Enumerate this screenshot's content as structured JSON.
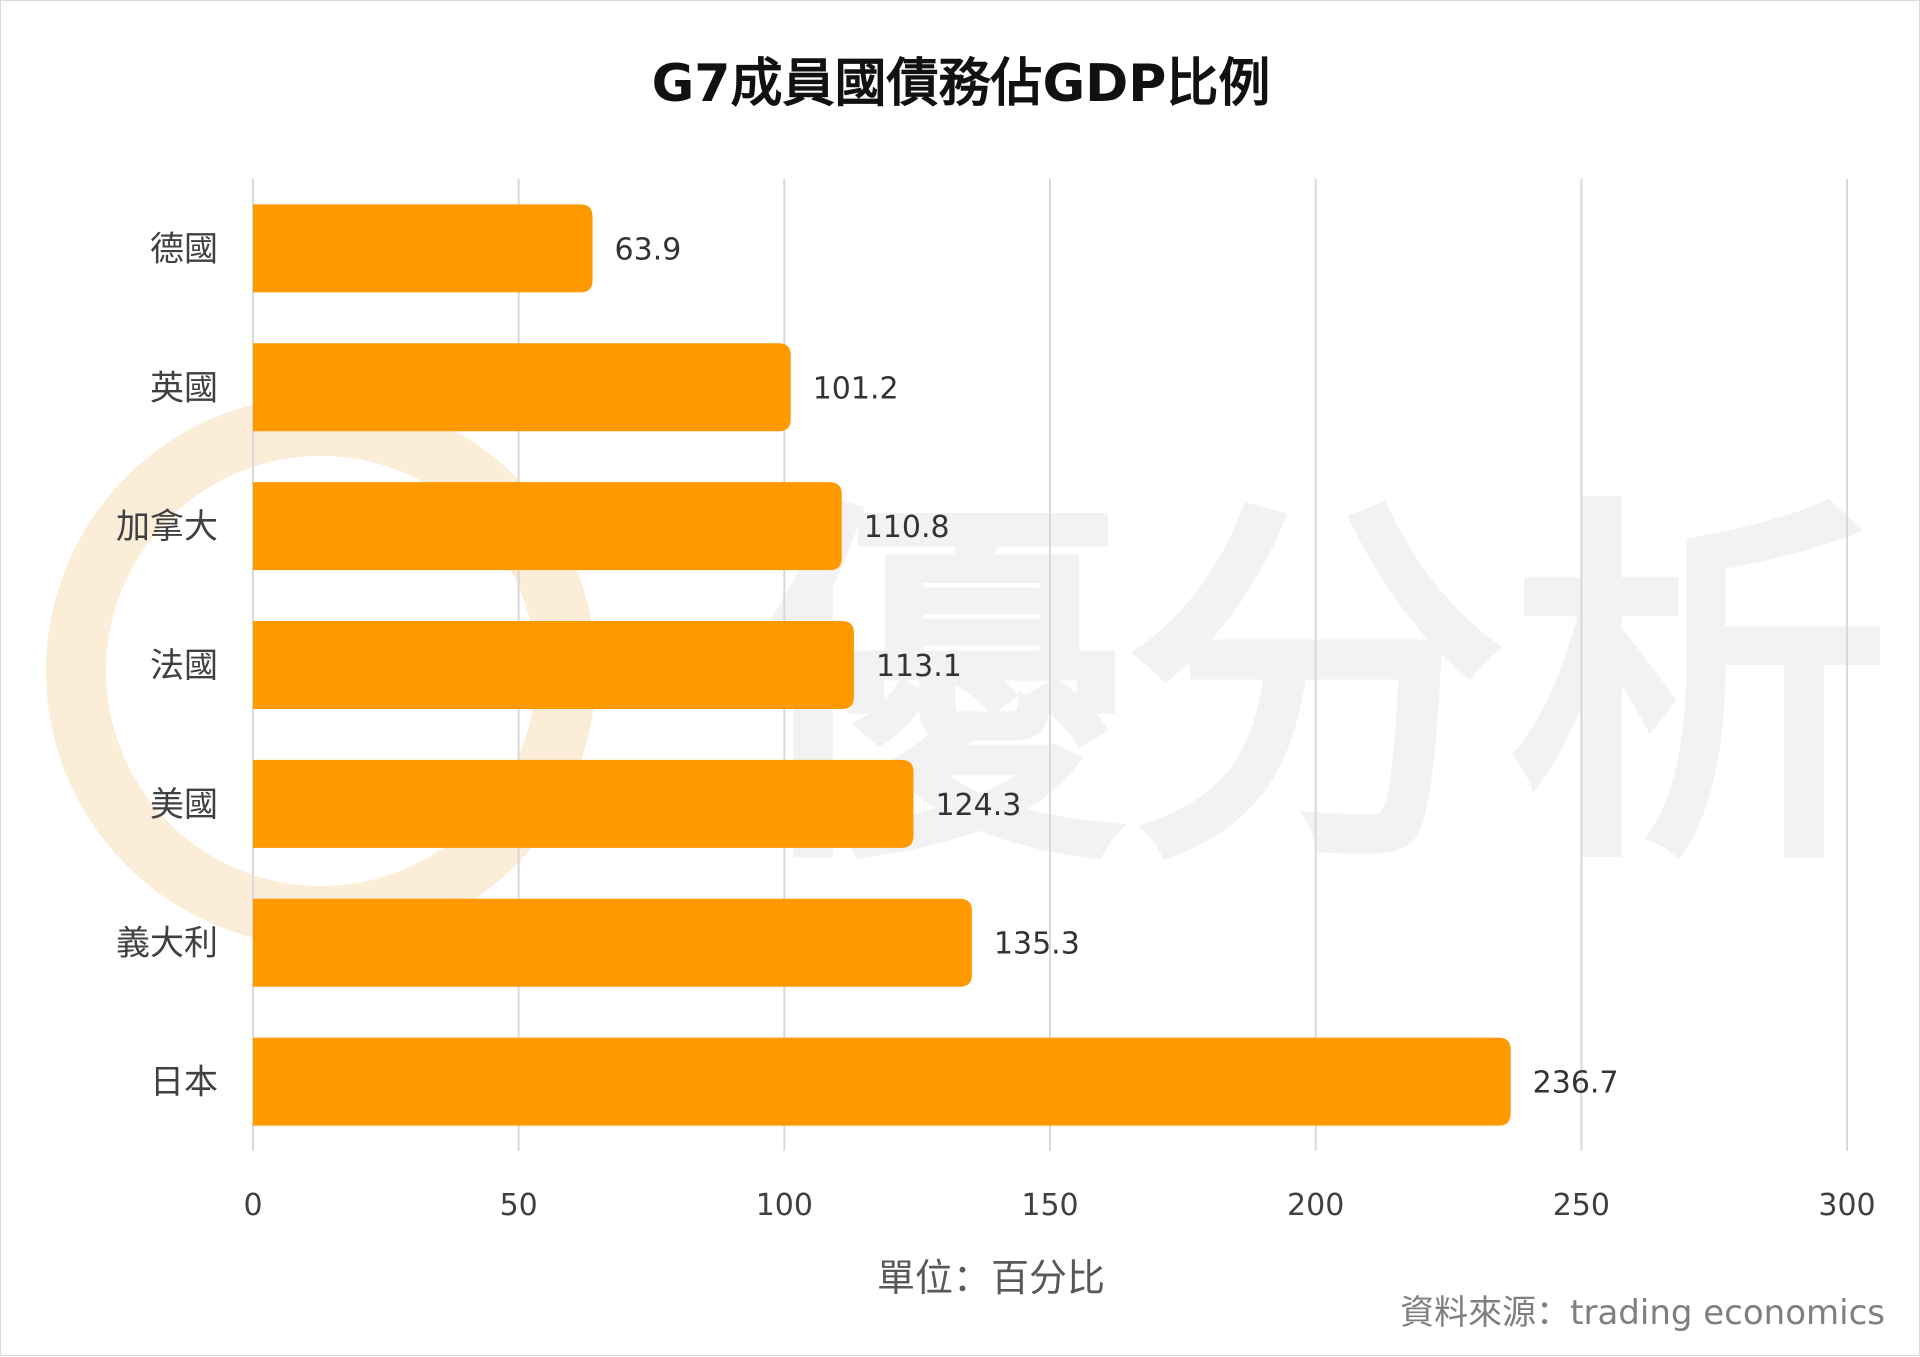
{
  "watermark": {
    "text": "優分析"
  },
  "chart_data": {
    "type": "bar",
    "orientation": "horizontal",
    "title": "G7成員國債務佔GDP比例",
    "categories": [
      "德國",
      "英國",
      "加拿大",
      "法國",
      "美國",
      "義大利",
      "日本"
    ],
    "values": [
      63.9,
      101.2,
      110.8,
      113.1,
      124.3,
      135.3,
      236.7
    ],
    "data_labels": [
      "63.9",
      "101.2",
      "110.8",
      "113.1",
      "124.3",
      "135.3",
      "236.7"
    ],
    "xlabel": "單位：百分比",
    "ylabel": "",
    "xlim": [
      0,
      300
    ],
    "xticks": [
      0,
      50,
      100,
      150,
      200,
      250,
      300
    ],
    "xtick_labels": [
      "0",
      "50",
      "100",
      "150",
      "200",
      "250",
      "300"
    ],
    "grid": true,
    "bar_color": "#FF9900",
    "source": "資料來源：trading economics"
  }
}
